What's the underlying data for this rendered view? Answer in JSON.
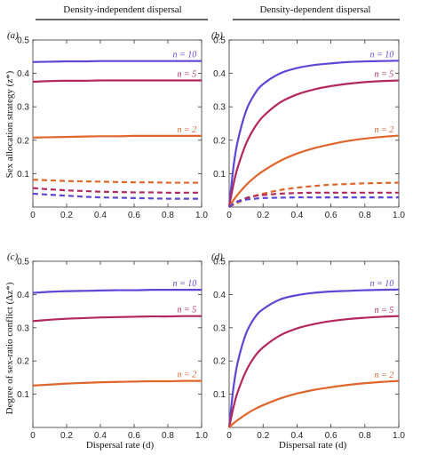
{
  "column_headers": [
    "Density-independent dispersal",
    "Density-dependent dispersal"
  ],
  "y_labels": {
    "top": "Sex allocation strategy (z*)",
    "bottom": "Degree of sex-ratio conflict (Δz*)"
  },
  "x_label": "Dispersal rate (d)",
  "series_colors": {
    "n10": "#5b47d6",
    "n5": "#b4275e",
    "n2": "#e0652a"
  },
  "chart_data": [
    {
      "panel": "(a)",
      "type": "line",
      "xlim": [
        0,
        1.0
      ],
      "ylim": [
        0,
        0.5
      ],
      "xticks": [
        "0",
        "0.2",
        "0.4",
        "0.6",
        "0.8",
        "1.0"
      ],
      "yticks": [
        "0.1",
        "0.2",
        "0.3",
        "0.4",
        "0.5"
      ],
      "x": [
        0,
        0.1,
        0.2,
        0.3,
        0.4,
        0.5,
        0.6,
        0.7,
        0.8,
        0.9,
        1.0
      ],
      "series": [
        {
          "name": "n = 10",
          "style": "solid",
          "color": "#5b47d6",
          "values": [
            0.434,
            0.435,
            0.436,
            0.436,
            0.437,
            0.437,
            0.437,
            0.437,
            0.437,
            0.437,
            0.437
          ]
        },
        {
          "name": "n = 5",
          "style": "solid",
          "color": "#b4275e",
          "values": [
            0.375,
            0.377,
            0.378,
            0.378,
            0.379,
            0.379,
            0.379,
            0.379,
            0.379,
            0.379,
            0.379
          ]
        },
        {
          "name": "n = 2",
          "style": "solid",
          "color": "#e0652a",
          "values": [
            0.208,
            0.209,
            0.21,
            0.211,
            0.212,
            0.212,
            0.213,
            0.213,
            0.213,
            0.213,
            0.213
          ]
        },
        {
          "style": "dashed",
          "color": "#e0652a",
          "values": [
            0.082,
            0.08,
            0.078,
            0.077,
            0.076,
            0.075,
            0.074,
            0.074,
            0.073,
            0.073,
            0.073
          ]
        },
        {
          "style": "dashed",
          "color": "#b4275e",
          "values": [
            0.057,
            0.053,
            0.05,
            0.048,
            0.046,
            0.045,
            0.044,
            0.044,
            0.043,
            0.043,
            0.043
          ]
        },
        {
          "style": "dashed",
          "color": "#5b47d6",
          "values": [
            0.04,
            0.037,
            0.034,
            0.031,
            0.029,
            0.028,
            0.027,
            0.026,
            0.025,
            0.025,
            0.025
          ]
        }
      ]
    },
    {
      "panel": "(b)",
      "type": "line",
      "xlim": [
        0,
        1.0
      ],
      "ylim": [
        0,
        0.5
      ],
      "xticks": [
        "0",
        "0.2",
        "0.4",
        "0.6",
        "0.8",
        "1.0"
      ],
      "yticks": [
        "0.1",
        "0.2",
        "0.3",
        "0.4",
        "0.5"
      ],
      "x": [
        0,
        0.025,
        0.05,
        0.1,
        0.15,
        0.2,
        0.3,
        0.4,
        0.5,
        0.6,
        0.7,
        0.8,
        0.9,
        1.0
      ],
      "series": [
        {
          "name": "n = 10",
          "style": "solid",
          "color": "#5b47d6",
          "values": [
            0.0,
            0.118,
            0.196,
            0.288,
            0.338,
            0.368,
            0.4,
            0.416,
            0.425,
            0.43,
            0.434,
            0.436,
            0.437,
            0.438
          ]
        },
        {
          "name": "n = 5",
          "style": "solid",
          "color": "#b4275e",
          "values": [
            0.0,
            0.067,
            0.118,
            0.19,
            0.238,
            0.271,
            0.313,
            0.337,
            0.352,
            0.362,
            0.369,
            0.374,
            0.377,
            0.379
          ]
        },
        {
          "name": "n = 2",
          "style": "solid",
          "color": "#e0652a",
          "values": [
            0.0,
            0.02,
            0.037,
            0.066,
            0.089,
            0.108,
            0.138,
            0.16,
            0.176,
            0.188,
            0.198,
            0.205,
            0.21,
            0.214
          ]
        },
        {
          "style": "dashed",
          "color": "#e0652a",
          "values": [
            0.0,
            0.007,
            0.013,
            0.024,
            0.033,
            0.04,
            0.051,
            0.058,
            0.063,
            0.067,
            0.069,
            0.071,
            0.072,
            0.073
          ]
        },
        {
          "style": "dashed",
          "color": "#b4275e",
          "values": [
            0.0,
            0.01,
            0.017,
            0.027,
            0.033,
            0.036,
            0.04,
            0.042,
            0.043,
            0.043,
            0.043,
            0.043,
            0.043,
            0.043
          ]
        },
        {
          "style": "dashed",
          "color": "#5b47d6",
          "values": [
            0.0,
            0.01,
            0.016,
            0.022,
            0.025,
            0.027,
            0.028,
            0.029,
            0.029,
            0.029,
            0.029,
            0.029,
            0.029,
            0.029
          ]
        }
      ]
    },
    {
      "panel": "(c)",
      "type": "line",
      "xlim": [
        0,
        1.0
      ],
      "ylim": [
        0,
        0.5
      ],
      "xticks": [
        "0",
        "0.2",
        "0.4",
        "0.6",
        "0.8",
        "1.0"
      ],
      "yticks": [
        "0.1",
        "0.2",
        "0.3",
        "0.4",
        "0.5"
      ],
      "x": [
        0,
        0.1,
        0.2,
        0.3,
        0.4,
        0.5,
        0.6,
        0.7,
        0.8,
        0.9,
        1.0
      ],
      "series": [
        {
          "name": "n = 10",
          "style": "solid",
          "color": "#5b47d6",
          "values": [
            0.405,
            0.408,
            0.41,
            0.411,
            0.412,
            0.413,
            0.413,
            0.414,
            0.414,
            0.414,
            0.414
          ]
        },
        {
          "name": "n = 5",
          "style": "solid",
          "color": "#b4275e",
          "values": [
            0.32,
            0.324,
            0.327,
            0.329,
            0.331,
            0.332,
            0.333,
            0.334,
            0.334,
            0.335,
            0.335
          ]
        },
        {
          "name": "n = 2",
          "style": "solid",
          "color": "#e0652a",
          "values": [
            0.126,
            0.129,
            0.132,
            0.134,
            0.136,
            0.137,
            0.138,
            0.139,
            0.139,
            0.14,
            0.14
          ]
        }
      ]
    },
    {
      "panel": "(d)",
      "type": "line",
      "xlim": [
        0,
        1.0
      ],
      "ylim": [
        0,
        0.5
      ],
      "xticks": [
        "0",
        "0.2",
        "0.4",
        "0.6",
        "0.8",
        "1.0"
      ],
      "yticks": [
        "0.1",
        "0.2",
        "0.3",
        "0.4",
        "0.5"
      ],
      "x": [
        0,
        0.025,
        0.05,
        0.1,
        0.15,
        0.2,
        0.3,
        0.4,
        0.5,
        0.6,
        0.7,
        0.8,
        0.9,
        1.0
      ],
      "series": [
        {
          "name": "n = 10",
          "style": "solid",
          "color": "#5b47d6",
          "values": [
            0.0,
            0.118,
            0.195,
            0.283,
            0.33,
            0.356,
            0.385,
            0.398,
            0.405,
            0.409,
            0.411,
            0.413,
            0.414,
            0.415
          ]
        },
        {
          "name": "n = 5",
          "style": "solid",
          "color": "#b4275e",
          "values": [
            0.0,
            0.06,
            0.106,
            0.17,
            0.213,
            0.241,
            0.277,
            0.298,
            0.311,
            0.32,
            0.326,
            0.33,
            0.333,
            0.335
          ]
        },
        {
          "name": "n = 2",
          "style": "solid",
          "color": "#e0652a",
          "values": [
            0.0,
            0.012,
            0.022,
            0.04,
            0.055,
            0.067,
            0.087,
            0.102,
            0.113,
            0.121,
            0.128,
            0.133,
            0.137,
            0.14
          ]
        }
      ]
    }
  ]
}
